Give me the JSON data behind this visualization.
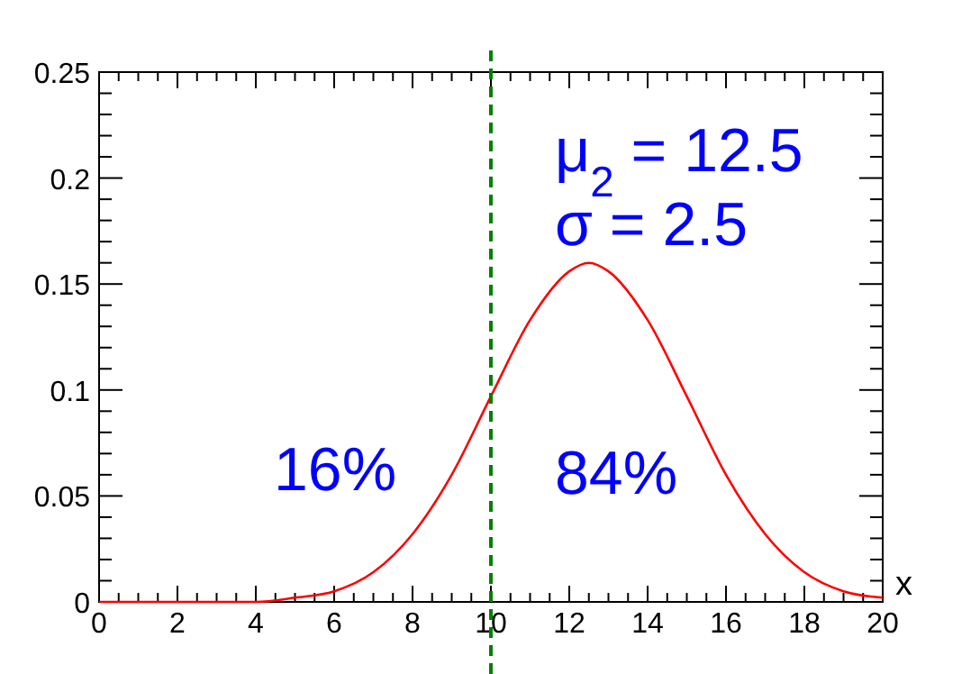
{
  "chart_data": {
    "type": "line",
    "xlabel": "x",
    "x": [
      0,
      2,
      3,
      4,
      5,
      6,
      7,
      8,
      9,
      10,
      11,
      12,
      12.5,
      13,
      14,
      15,
      16,
      17,
      18,
      19,
      20
    ],
    "series": [
      {
        "color": "#ff0000",
        "values": [
          0,
          0,
          0,
          0,
          0.002,
          0.005,
          0.014,
          0.032,
          0.06,
          0.097,
          0.133,
          0.156,
          0.16,
          0.156,
          0.133,
          0.097,
          0.06,
          0.032,
          0.014,
          0.005,
          0.002
        ]
      }
    ],
    "xlim": [
      0,
      20
    ],
    "xticks": [
      0,
      2,
      4,
      6,
      8,
      10,
      12,
      14,
      16,
      18,
      20
    ],
    "ylim": [
      0,
      0.25
    ],
    "yticks": [
      0,
      0.05,
      0.1,
      0.15,
      0.2,
      0.25
    ],
    "ref_lines": [
      {
        "axis": "x",
        "value": 10,
        "color": "#008000",
        "line_style": "dashed"
      }
    ],
    "annotations": [
      "μ$_{2}$ = 12.5",
      "σ = 2.5",
      "16%",
      "84%"
    ],
    "grid": false,
    "marker": "none",
    "line_style": "solid"
  }
}
